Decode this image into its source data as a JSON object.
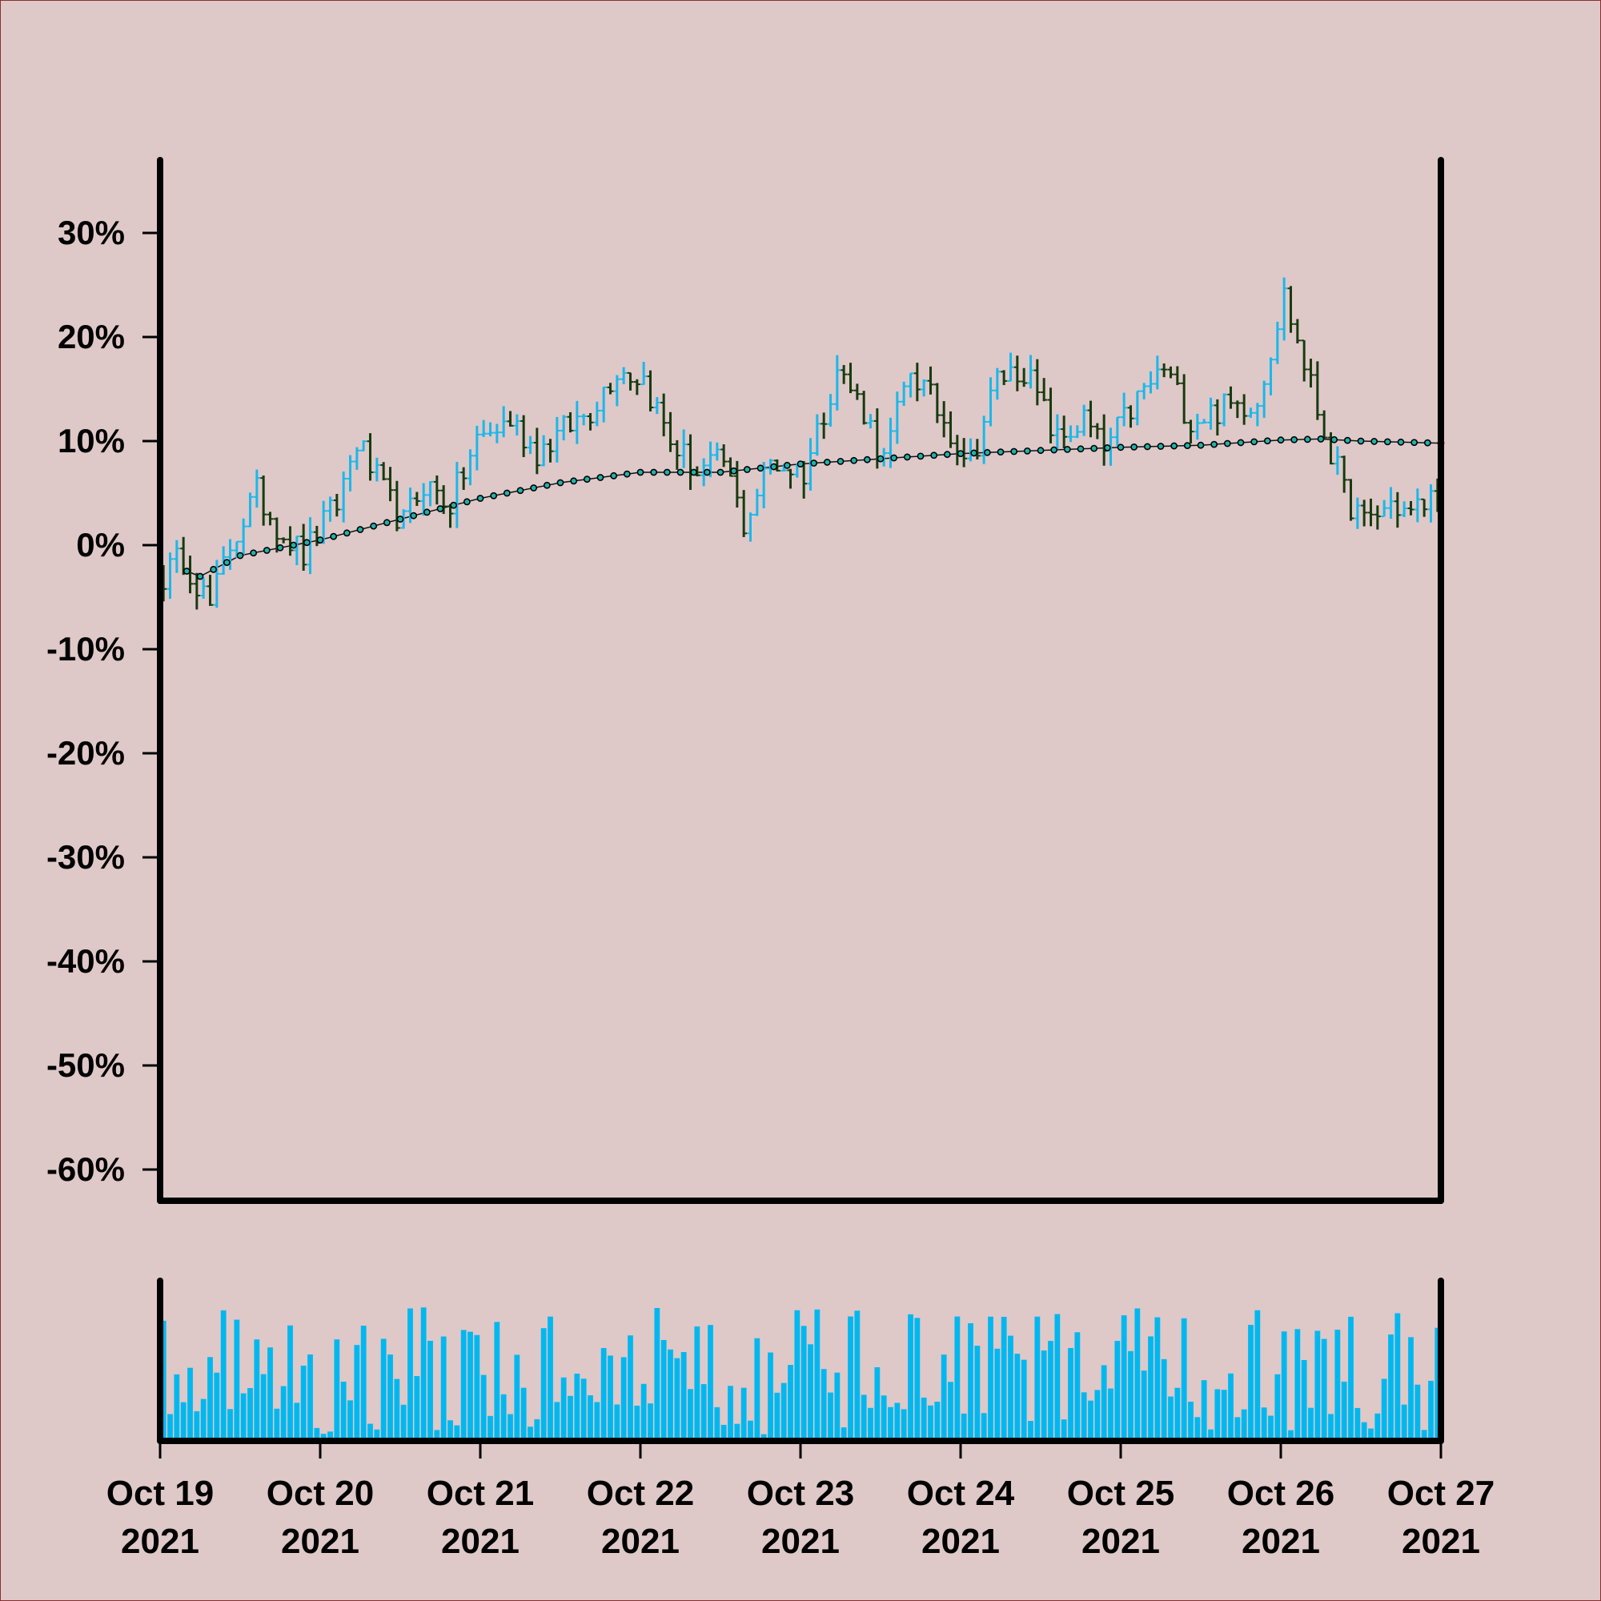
{
  "chart_data": {
    "type": "ohlc",
    "title": "",
    "xlabel": "",
    "ylabel": "",
    "background_color": "#dfc8c8",
    "up_color": "#1ab8ea",
    "down_color": "#173b0f",
    "volume_color": "#00b8ef",
    "ma_color": "#20b2aa",
    "grid": false,
    "y_axis": {
      "min": -63,
      "max": 37,
      "ticks": [
        30,
        20,
        10,
        0,
        -10,
        -20,
        -30,
        -40,
        -50,
        -60
      ],
      "tick_labels": [
        "30%",
        "20%",
        "10%",
        "0%",
        "-10%",
        "-20%",
        "-30%",
        "-40%",
        "-50%",
        "-60%"
      ]
    },
    "x_axis": {
      "start": "2021-10-19T00:00",
      "end": "2021-10-27T00:00",
      "ticks": [
        {
          "date": "2021-10-19",
          "line1": "Oct 19",
          "line2": "2021"
        },
        {
          "date": "2021-10-20",
          "line1": "Oct 20",
          "line2": "2021"
        },
        {
          "date": "2021-10-21",
          "line1": "Oct 21",
          "line2": "2021"
        },
        {
          "date": "2021-10-22",
          "line1": "Oct 22",
          "line2": "2021"
        },
        {
          "date": "2021-10-23",
          "line1": "Oct 23",
          "line2": "2021"
        },
        {
          "date": "2021-10-24",
          "line1": "Oct 24",
          "line2": "2021"
        },
        {
          "date": "2021-10-25",
          "line1": "Oct 25",
          "line2": "2021"
        },
        {
          "date": "2021-10-26",
          "line1": "Oct 26",
          "line2": "2021"
        },
        {
          "date": "2021-10-27",
          "line1": "Oct 27",
          "line2": "2021"
        }
      ]
    },
    "close_path": [
      [
        "2021-10-19T00:00",
        -3
      ],
      [
        "2021-10-19T03:00",
        -1
      ],
      [
        "2021-10-19T07:00",
        -6
      ],
      [
        "2021-10-19T10:00",
        0
      ],
      [
        "2021-10-19T14:00",
        5
      ],
      [
        "2021-10-19T17:00",
        2
      ],
      [
        "2021-10-19T21:00",
        -1
      ],
      [
        "2021-10-20T02:00",
        4
      ],
      [
        "2021-10-20T05:00",
        10
      ],
      [
        "2021-10-20T09:00",
        5
      ],
      [
        "2021-10-20T12:00",
        2
      ],
      [
        "2021-10-20T15:00",
        6
      ],
      [
        "2021-10-20T19:00",
        4
      ],
      [
        "2021-10-20T23:00",
        10
      ],
      [
        "2021-10-21T04:00",
        12
      ],
      [
        "2021-10-21T08:00",
        9
      ],
      [
        "2021-10-21T12:00",
        11
      ],
      [
        "2021-10-21T16:00",
        13
      ],
      [
        "2021-10-21T20:00",
        17
      ],
      [
        "2021-10-22T00:00",
        16
      ],
      [
        "2021-10-22T04:00",
        10
      ],
      [
        "2021-10-22T08:00",
        7
      ],
      [
        "2021-10-22T12:00",
        8
      ],
      [
        "2021-10-22T15:00",
        2
      ],
      [
        "2021-10-22T19:00",
        8
      ],
      [
        "2021-10-23T00:00",
        7
      ],
      [
        "2021-10-23T05:00",
        17
      ],
      [
        "2021-10-23T09:00",
        13
      ],
      [
        "2021-10-23T12:00",
        8
      ],
      [
        "2021-10-23T16:00",
        17
      ],
      [
        "2021-10-23T21:00",
        12
      ],
      [
        "2021-10-24T01:00",
        8
      ],
      [
        "2021-10-24T05:00",
        16
      ],
      [
        "2021-10-24T09:00",
        17
      ],
      [
        "2021-10-24T14:00",
        10
      ],
      [
        "2021-10-24T18:00",
        12
      ],
      [
        "2021-10-24T21:00",
        9
      ],
      [
        "2021-10-25T02:00",
        14
      ],
      [
        "2021-10-25T06:00",
        17
      ],
      [
        "2021-10-25T10:00",
        12
      ],
      [
        "2021-10-25T14:00",
        13
      ],
      [
        "2021-10-25T20:00",
        14
      ],
      [
        "2021-10-26T00:00",
        24
      ],
      [
        "2021-10-26T05:00",
        13
      ],
      [
        "2021-10-26T09:00",
        5
      ],
      [
        "2021-10-26T12:00",
        2
      ],
      [
        "2021-10-26T16:00",
        4
      ],
      [
        "2021-10-26T19:00",
        3
      ],
      [
        "2021-10-26T23:00",
        5
      ]
    ],
    "ma_path": [
      [
        "2021-10-19T00:00",
        -2
      ],
      [
        "2021-10-19T04:00",
        -2.5
      ],
      [
        "2021-10-19T06:00",
        -3
      ],
      [
        "2021-10-19T12:00",
        -1
      ],
      [
        "2021-10-20T00:00",
        0.5
      ],
      [
        "2021-10-20T12:00",
        2.5
      ],
      [
        "2021-10-21T00:00",
        4.5
      ],
      [
        "2021-10-21T12:00",
        6
      ],
      [
        "2021-10-22T00:00",
        7
      ],
      [
        "2021-10-22T12:00",
        7
      ],
      [
        "2021-10-23T00:00",
        7.8
      ],
      [
        "2021-10-23T12:00",
        8.3
      ],
      [
        "2021-10-24T00:00",
        8.8
      ],
      [
        "2021-10-24T12:00",
        9.1
      ],
      [
        "2021-10-25T00:00",
        9.4
      ],
      [
        "2021-10-25T12:00",
        9.6
      ],
      [
        "2021-10-26T00:00",
        10.1
      ],
      [
        "2021-10-26T06:00",
        10.2
      ],
      [
        "2021-10-26T12:00",
        10
      ],
      [
        "2021-10-27T00:00",
        9.8
      ]
    ]
  }
}
